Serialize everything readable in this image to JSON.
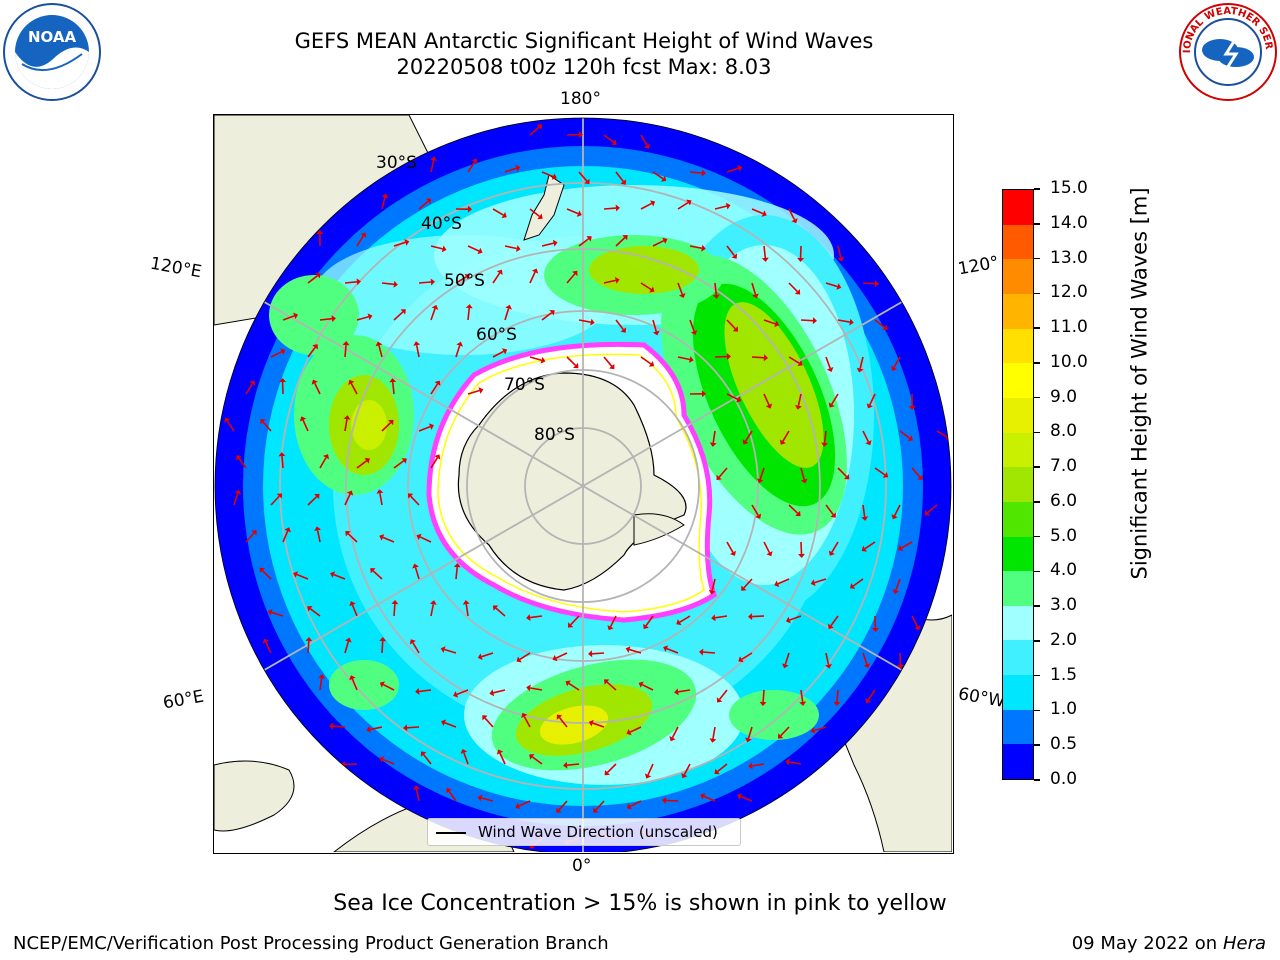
{
  "title": {
    "line1": "GEFS MEAN Antarctic Significant Height of Wind Waves",
    "line2": "20220508 t00z 120h fcst   Max: 8.03"
  },
  "logos": {
    "left": {
      "icon": "noaa-logo",
      "text": "NOAA"
    },
    "right": {
      "icon": "national-weather-service-logo",
      "text": "NATIONAL WEATHER SERVICE"
    }
  },
  "map": {
    "projection": "south-polar-stereographic",
    "longitude_labels": {
      "top": "180°",
      "upper_left": "120°E",
      "upper_right": "120°",
      "lower_left": "60°E",
      "lower_right": "60°W",
      "bottom": "0°"
    },
    "latitude_labels": [
      "30°S",
      "40°S",
      "50°S",
      "60°S",
      "70°S",
      "80°S"
    ],
    "land_color": "#eeeedc",
    "legend": "Wind Wave Direction (unscaled)",
    "arrow_color": "#e00000",
    "ice_edge_colors": [
      "#ff40ff",
      "#ffff00"
    ]
  },
  "colorbar": {
    "title": "Significant Height of Wind Waves [m]",
    "ticks": [
      "0.0",
      "0.5",
      "1.0",
      "1.5",
      "2.0",
      "3.0",
      "4.0",
      "5.0",
      "6.0",
      "7.0",
      "8.0",
      "9.0",
      "10.0",
      "11.0",
      "12.0",
      "13.0",
      "14.0",
      "15.0"
    ],
    "colors": [
      "#0000ff",
      "#0077ff",
      "#00e6ff",
      "#40f0ff",
      "#a0ffff",
      "#50ff80",
      "#00e600",
      "#50e600",
      "#a0e600",
      "#c8f000",
      "#e6f000",
      "#ffff00",
      "#ffe000",
      "#ffb400",
      "#ff8c00",
      "#ff5a00",
      "#ff0000"
    ]
  },
  "caption": "Sea Ice Concentration > 15% is shown in pink to yellow",
  "footer": {
    "left": "NCEP/EMC/Verification Post Processing Product Generation Branch",
    "right_date": "09 May 2022 on",
    "right_host": "Hera"
  }
}
